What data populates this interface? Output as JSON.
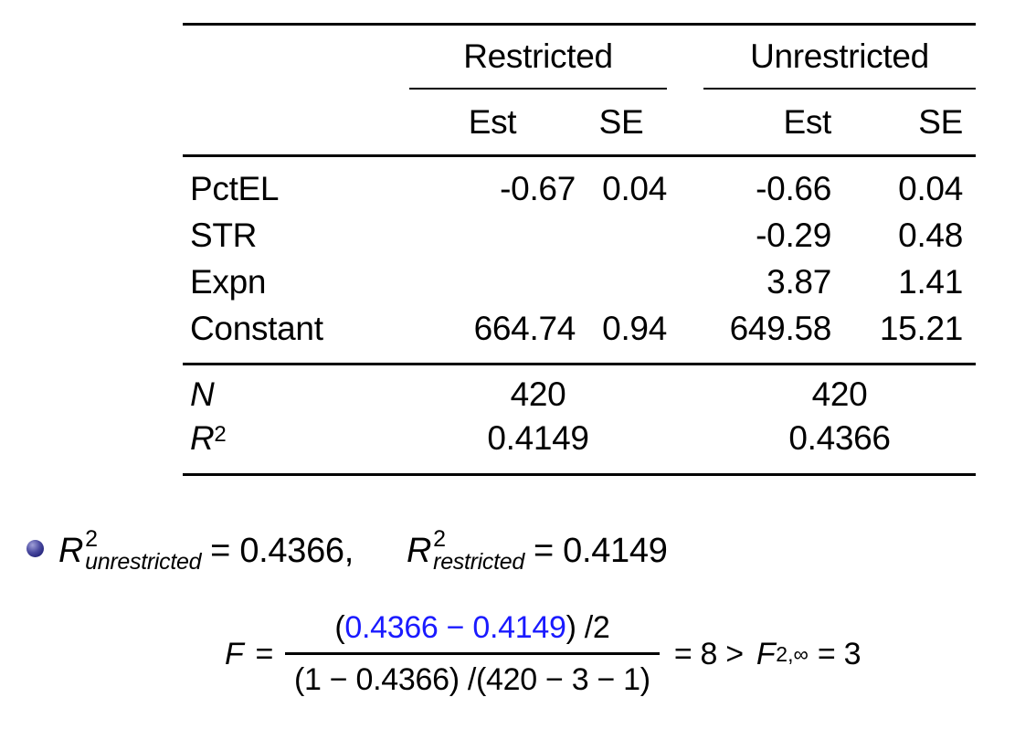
{
  "colors": {
    "accent_blue": "#1a1aff",
    "text": "#000000",
    "bullet_ball": "#23237a"
  },
  "table": {
    "group_headers": [
      "Restricted",
      "Unrestricted"
    ],
    "subheaders": [
      "Est",
      "SE",
      "Est",
      "SE"
    ],
    "rows": [
      {
        "label": "PctEL",
        "cells": [
          "-0.67",
          "0.04",
          "-0.66",
          "0.04"
        ]
      },
      {
        "label": "STR",
        "cells": [
          "",
          "",
          "-0.29",
          "0.48"
        ]
      },
      {
        "label": "Expn",
        "cells": [
          "",
          "",
          "3.87",
          "1.41"
        ]
      },
      {
        "label": "Constant",
        "cells": [
          "664.74",
          "0.94",
          "649.58",
          "15.21"
        ]
      }
    ],
    "summary": [
      {
        "base": "N",
        "sup": "",
        "values": [
          "420",
          "420"
        ]
      },
      {
        "base": "R",
        "sup": "2",
        "values": [
          "0.4149",
          "0.4366"
        ]
      }
    ]
  },
  "bullet": {
    "t1_base": "R",
    "t1_sup": "2",
    "t1_sub": "unrestricted",
    "t1_rhs": "= 0.4366,",
    "t2_base": "R",
    "t2_sup": "2",
    "t2_sub": "restricted",
    "t2_rhs": "= 0.4149"
  },
  "formula": {
    "lhs": "F",
    "eq": "=",
    "num_open": "(",
    "num_blue": "0.4366 − 0.4149",
    "num_close": ") /2",
    "den": "(1 − 0.4366) /(420 − 3 − 1)",
    "mid": "= 8 >",
    "f2": "F",
    "f2_sub": "2,∞",
    "end": "= 3"
  }
}
